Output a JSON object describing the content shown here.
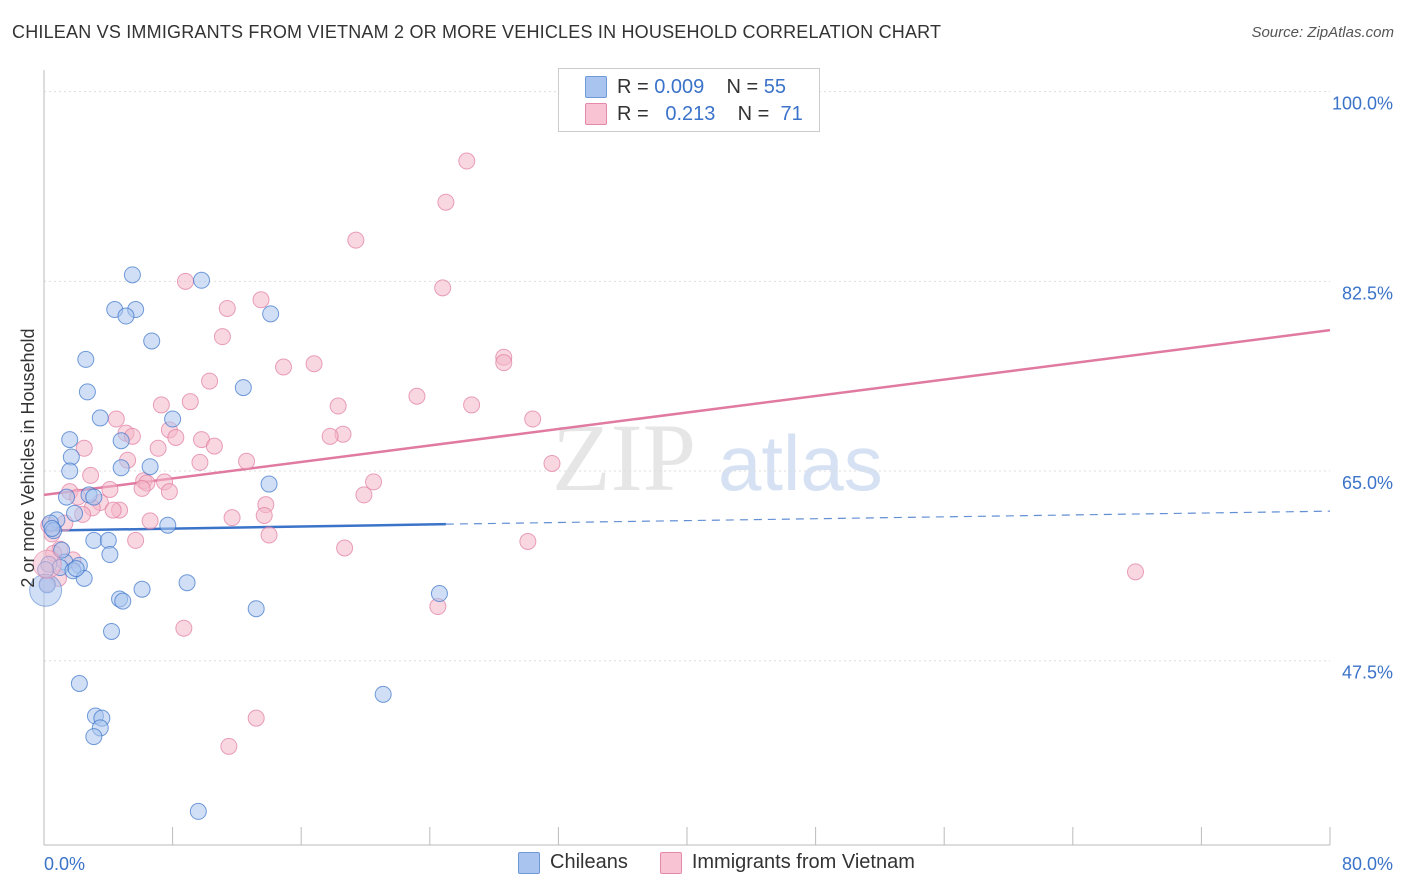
{
  "title": "CHILEAN VS IMMIGRANTS FROM VIETNAM 2 OR MORE VEHICLES IN HOUSEHOLD CORRELATION CHART",
  "source": "Source: ZipAtlas.com",
  "watermark": {
    "zip": "ZIP",
    "atlas": "atlas"
  },
  "legend_stats": [
    {
      "r_label": "R =",
      "r_value": "0.009",
      "n_label": "N =",
      "n_value": "55"
    },
    {
      "r_label": "R =",
      "r_value": "0.213",
      "n_label": "N =",
      "n_value": "71"
    }
  ],
  "chart_data": {
    "type": "scatter",
    "title": "CHILEAN VS IMMIGRANTS FROM VIETNAM 2 OR MORE VEHICLES IN HOUSEHOLD CORRELATION CHART",
    "xlabel": "",
    "ylabel": "2 or more Vehicles in Household",
    "xlim": [
      0,
      80
    ],
    "ylim": [
      30.5,
      102
    ],
    "x_tick_labels": [
      "0.0%",
      "80.0%"
    ],
    "y_ticks": [
      {
        "value": 47.5,
        "label": "47.5%"
      },
      {
        "value": 65.0,
        "label": "65.0%"
      },
      {
        "value": 82.5,
        "label": "82.5%"
      },
      {
        "value": 100.0,
        "label": "100.0%"
      }
    ],
    "grid": true,
    "legend_position": "bottom",
    "series": [
      {
        "name": "Chileans",
        "color": "#3b73c9",
        "fill": "#a9c4ee",
        "trend": {
          "x0": 0,
          "y0": 59.5,
          "x1": 25,
          "y1": 60.1,
          "dashed_to_x": 80,
          "dashed_to_y": 61.3
        },
        "points": [
          [
            5.5,
            83.1
          ],
          [
            9.8,
            82.6
          ],
          [
            4.4,
            79.9
          ],
          [
            5.7,
            79.9
          ],
          [
            5.1,
            79.3
          ],
          [
            14.1,
            79.5
          ],
          [
            6.7,
            77.0
          ],
          [
            2.6,
            75.3
          ],
          [
            2.7,
            72.3
          ],
          [
            12.4,
            72.7
          ],
          [
            3.5,
            69.9
          ],
          [
            8.0,
            69.8
          ],
          [
            1.6,
            67.9
          ],
          [
            4.8,
            67.8
          ],
          [
            1.7,
            66.3
          ],
          [
            6.6,
            65.4
          ],
          [
            4.8,
            65.3
          ],
          [
            1.6,
            65.0
          ],
          [
            14.0,
            63.8
          ],
          [
            2.8,
            62.8
          ],
          [
            1.4,
            62.6
          ],
          [
            3.1,
            62.6
          ],
          [
            0.8,
            60.5
          ],
          [
            1.9,
            61.1
          ],
          [
            0.4,
            60.2
          ],
          [
            7.7,
            60.0
          ],
          [
            0.6,
            59.5
          ],
          [
            3.1,
            58.6
          ],
          [
            4.0,
            58.6
          ],
          [
            4.1,
            57.3
          ],
          [
            1.3,
            56.6
          ],
          [
            0.3,
            56.4
          ],
          [
            2.2,
            56.3
          ],
          [
            1.0,
            56.1
          ],
          [
            1.8,
            55.8
          ],
          [
            0.2,
            54.5
          ],
          [
            2.5,
            55.1
          ],
          [
            8.9,
            54.7
          ],
          [
            6.1,
            54.1
          ],
          [
            4.7,
            53.2
          ],
          [
            4.9,
            53.0
          ],
          [
            24.6,
            53.7
          ],
          [
            13.2,
            52.3
          ],
          [
            4.2,
            50.2
          ],
          [
            2.2,
            45.4
          ],
          [
            21.1,
            44.4
          ],
          [
            3.2,
            42.4
          ],
          [
            3.6,
            42.2
          ],
          [
            3.5,
            41.3
          ],
          [
            3.1,
            40.5
          ],
          [
            9.6,
            33.6
          ],
          [
            0.1,
            55.9
          ],
          [
            0.5,
            59.7
          ],
          [
            1.1,
            57.7
          ],
          [
            2.0,
            56.0
          ]
        ]
      },
      {
        "name": "Immigrants from Vietnam",
        "color": "#e07aa0",
        "fill": "#f4b6c9",
        "trend": {
          "x0": 0,
          "y0": 62.8,
          "x1": 80,
          "y1": 78.0
        },
        "points": [
          [
            26.3,
            93.6
          ],
          [
            25.0,
            89.8
          ],
          [
            19.4,
            86.3
          ],
          [
            8.8,
            82.5
          ],
          [
            24.8,
            81.9
          ],
          [
            13.5,
            80.8
          ],
          [
            11.4,
            80.0
          ],
          [
            11.1,
            77.4
          ],
          [
            28.6,
            75.5
          ],
          [
            28.6,
            75.0
          ],
          [
            16.8,
            74.9
          ],
          [
            14.9,
            74.6
          ],
          [
            10.3,
            73.3
          ],
          [
            23.2,
            71.9
          ],
          [
            9.1,
            71.4
          ],
          [
            7.3,
            71.1
          ],
          [
            18.3,
            71.0
          ],
          [
            26.6,
            71.1
          ],
          [
            4.5,
            69.8
          ],
          [
            30.4,
            69.8
          ],
          [
            7.8,
            68.8
          ],
          [
            5.1,
            68.5
          ],
          [
            5.5,
            68.2
          ],
          [
            18.6,
            68.4
          ],
          [
            17.8,
            68.2
          ],
          [
            8.2,
            68.1
          ],
          [
            9.8,
            67.9
          ],
          [
            10.6,
            67.3
          ],
          [
            7.1,
            67.1
          ],
          [
            2.5,
            67.1
          ],
          [
            5.2,
            66.0
          ],
          [
            9.7,
            65.8
          ],
          [
            12.6,
            65.9
          ],
          [
            31.6,
            65.7
          ],
          [
            2.9,
            64.6
          ],
          [
            20.5,
            64.0
          ],
          [
            6.2,
            64.1
          ],
          [
            6.4,
            63.9
          ],
          [
            7.5,
            64.0
          ],
          [
            6.1,
            63.4
          ],
          [
            4.1,
            63.3
          ],
          [
            1.6,
            63.1
          ],
          [
            7.8,
            63.1
          ],
          [
            19.9,
            62.8
          ],
          [
            2.1,
            62.6
          ],
          [
            3.5,
            62.1
          ],
          [
            13.8,
            61.9
          ],
          [
            3.0,
            61.6
          ],
          [
            4.7,
            61.4
          ],
          [
            4.3,
            61.4
          ],
          [
            2.4,
            61.0
          ],
          [
            13.7,
            60.9
          ],
          [
            11.7,
            60.7
          ],
          [
            6.6,
            60.4
          ],
          [
            1.3,
            60.2
          ],
          [
            0.3,
            60.0
          ],
          [
            0.5,
            59.2
          ],
          [
            14.0,
            59.1
          ],
          [
            5.7,
            58.6
          ],
          [
            30.1,
            58.5
          ],
          [
            1.0,
            57.8
          ],
          [
            18.7,
            57.9
          ],
          [
            0.6,
            57.4
          ],
          [
            1.8,
            56.8
          ],
          [
            0.9,
            55.1
          ],
          [
            67.9,
            55.7
          ],
          [
            24.5,
            52.5
          ],
          [
            8.7,
            50.5
          ],
          [
            13.2,
            42.2
          ],
          [
            11.5,
            39.6
          ],
          [
            0.2,
            54.6
          ]
        ]
      }
    ]
  },
  "legend_bottom": [
    "Chileans",
    "Immigrants from Vietnam"
  ]
}
